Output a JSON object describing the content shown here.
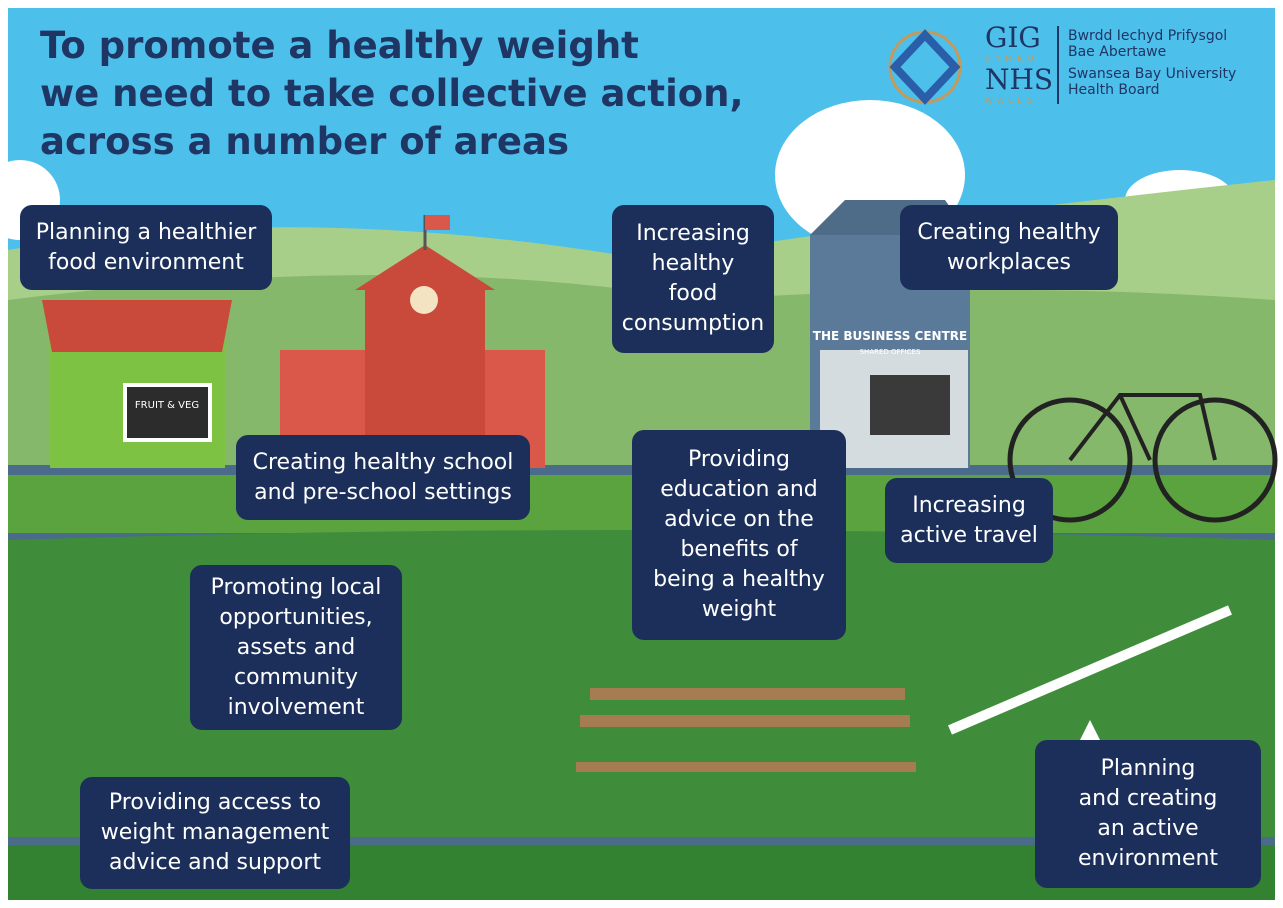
{
  "header": {
    "title": [
      "To promote a healthy weight",
      "we need to take collective action,",
      "across a number of areas"
    ]
  },
  "logo": {
    "mark": [
      "GIG",
      "CYMRU",
      "NHS",
      "WALES"
    ],
    "text": [
      "Bwrdd Iechyd Prifysgol",
      "Bae Abertawe",
      "Swansea Bay University",
      "Health Board"
    ]
  },
  "signs": {
    "shop": "FRUIT & VEG",
    "office": "THE BUSINESS CENTRE",
    "office_sub": "SHARED OFFICES"
  },
  "boxes": [
    {
      "lines": [
        "Planning a healthier",
        "food environment"
      ]
    },
    {
      "lines": [
        "Increasing",
        "healthy",
        "food",
        "consumption"
      ]
    },
    {
      "lines": [
        "Creating healthy",
        "workplaces"
      ]
    },
    {
      "lines": [
        "Creating healthy school",
        "and pre-school settings"
      ]
    },
    {
      "lines": [
        "Providing",
        "education and",
        "advice on the",
        "benefits of",
        "being a healthy",
        "weight"
      ]
    },
    {
      "lines": [
        "Increasing",
        "active travel"
      ]
    },
    {
      "lines": [
        "Promoting local",
        "opportunities,",
        "assets and",
        "community",
        "involvement"
      ]
    },
    {
      "lines": [
        "Providing access to",
        "weight management",
        "advice and support"
      ]
    },
    {
      "lines": [
        "Planning",
        "and creating",
        "an active",
        "environment"
      ]
    }
  ]
}
